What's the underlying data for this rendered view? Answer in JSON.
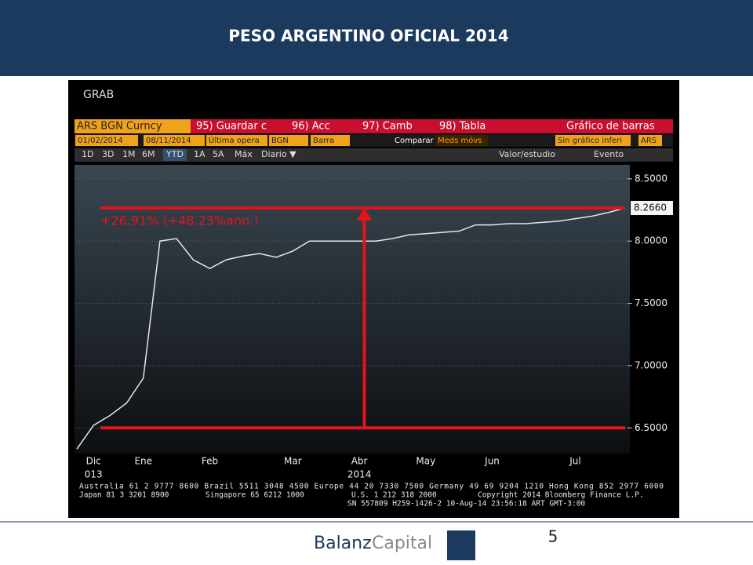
{
  "header": {
    "title": "PESO ARGENTINO OFICIAL 2014"
  },
  "terminal": {
    "command": "GRAB",
    "security": "ARS BGN Curncy",
    "tabs": [
      "95) Guardar c",
      "96) Acc",
      "97) Camb",
      "98) Tabla"
    ],
    "chart_kind": "Gráfico de barras",
    "fields": [
      "01/02/2014",
      "08/11/2014",
      "Última opera",
      "BGN",
      "Barra"
    ],
    "compare": "Comparar",
    "moving_averages": "Meds móvs",
    "lower_chart": "Sin gráfico inferi",
    "currency": "ARS",
    "periods": [
      "1D",
      "3D",
      "1M",
      "6M",
      "YTD",
      "1A",
      "5A",
      "Máx"
    ],
    "active_period": "YTD",
    "frequency": "Diario ▼",
    "study": "Valor/estudio",
    "event": "Evento",
    "footer_lines": [
      "Australia 61 2 9777 8600 Brazil 5511 3048 4500 Europe 44 20 7330 7500 Germany 49 69 9204 1210 Hong Kong 852 2977 6000",
      "Japan 81 3 3201 8900",
      "Singapore 65 6212 1000",
      "U.S. 1 212 318 2000",
      "Copyright 2014 Bloomberg Finance L.P.",
      "SN 557809 H259-1426-2 10-Aug-14 23:56:18 ART  GMT-3:00"
    ]
  },
  "chart_data": {
    "type": "line",
    "annotation": "+26.91% (+48.23%ann.)",
    "categories": [
      null,
      "Dic",
      null,
      null,
      "Ene",
      null,
      null,
      null,
      "Feb",
      null,
      null,
      null,
      null,
      "Mar",
      null,
      null,
      null,
      "Abr",
      null,
      null,
      null,
      "May",
      null,
      null,
      null,
      "Jun",
      null,
      null,
      null,
      null,
      "Jul",
      null,
      null,
      null
    ],
    "x_year_labels": [
      null,
      "013",
      null,
      null,
      null,
      null,
      null,
      null,
      null,
      null,
      null,
      null,
      null,
      null,
      null,
      null,
      null,
      "2014",
      null,
      null,
      null,
      null,
      null,
      null,
      null,
      null,
      null,
      null,
      null,
      null,
      null,
      null,
      null,
      null
    ],
    "series": [
      {
        "name": "ARS BGN Curncy",
        "color": "#e6e6e6",
        "values": [
          6.33,
          6.52,
          6.6,
          6.7,
          6.9,
          8.0,
          8.02,
          7.85,
          7.78,
          7.85,
          7.88,
          7.9,
          7.87,
          7.92,
          8.0,
          8.0,
          8.0,
          8.0,
          8.0,
          8.02,
          8.05,
          8.06,
          8.07,
          8.08,
          8.13,
          8.13,
          8.14,
          8.14,
          8.15,
          8.16,
          8.18,
          8.2,
          8.23,
          8.266
        ]
      }
    ],
    "last_value_label": {
      "value": 8.266,
      "label": "8.2660"
    },
    "reference_lines": [
      6.5,
      8.266
    ],
    "reference_color": "#e3141c",
    "ylim": [
      6.3,
      8.6
    ],
    "yticks": [
      {
        "value": 6.5,
        "label": "6.5000"
      },
      {
        "value": 7,
        "label": "7.0000"
      },
      {
        "value": 7.5,
        "label": "7.5000"
      },
      {
        "value": 8,
        "label": "8.0000"
      },
      {
        "value": 8.5,
        "label": "8.5000"
      }
    ],
    "grid": true
  },
  "footer": {
    "brand": "Balanz",
    "brand_suffix": "Capital",
    "page": "5"
  }
}
